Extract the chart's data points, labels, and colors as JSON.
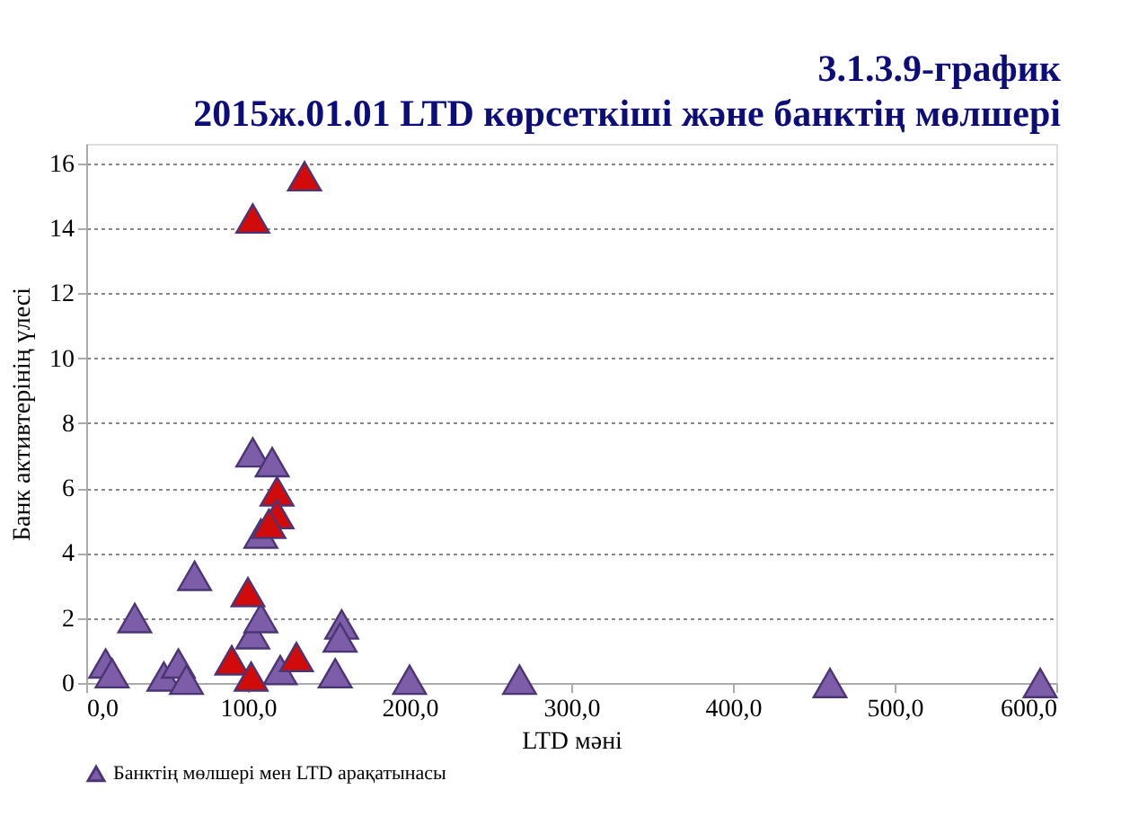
{
  "chart_data": {
    "type": "scatter",
    "title": "3.1.3.9-график",
    "subtitle": "2015ж.01.01 LTD көрсеткіші және банктің мөлшері",
    "xlabel": "LTD мәні",
    "ylabel": "Банк активтерінің үлесі",
    "xlim": [
      0,
      600
    ],
    "ylim": [
      0,
      16.6
    ],
    "xticks": [
      {
        "value": 0,
        "label": "0,0"
      },
      {
        "value": 100,
        "label": "100,0"
      },
      {
        "value": 200,
        "label": "200,0"
      },
      {
        "value": 300,
        "label": "300,0"
      },
      {
        "value": 400,
        "label": "400,0"
      },
      {
        "value": 500,
        "label": "500,0"
      },
      {
        "value": 600,
        "label": "600,0"
      }
    ],
    "yticks": [
      0,
      2,
      4,
      6,
      8,
      10,
      12,
      14,
      16
    ],
    "grid": "y",
    "legend": "bottom",
    "marker": "triangle",
    "series": [
      {
        "name": "Банктің мөлшері мен LTD арақатынасы",
        "color": "#7d5ca8",
        "x": [
          12,
          16,
          30,
          48,
          57,
          62,
          67,
          103,
          115,
          108,
          103,
          108,
          154,
          158,
          157,
          200,
          268,
          460,
          590,
          120,
          103,
          135,
          118,
          118,
          113,
          100,
          90,
          102,
          130
        ],
        "values": [
          0.6,
          0.3,
          2.0,
          0.2,
          0.6,
          0.1,
          3.3,
          7.1,
          6.8,
          4.6,
          1.5,
          2.0,
          0.3,
          1.8,
          1.4,
          0.1,
          0.1,
          0.0,
          0.0,
          0.4,
          14.3,
          15.6,
          5.9,
          5.2,
          4.9,
          2.8,
          0.7,
          0.2,
          0.8
        ],
        "colors": [
          "#7d5ca8",
          "#7d5ca8",
          "#7d5ca8",
          "#7d5ca8",
          "#7d5ca8",
          "#7d5ca8",
          "#7d5ca8",
          "#7d5ca8",
          "#7d5ca8",
          "#7d5ca8",
          "#7d5ca8",
          "#7d5ca8",
          "#7d5ca8",
          "#7d5ca8",
          "#7d5ca8",
          "#7d5ca8",
          "#7d5ca8",
          "#7d5ca8",
          "#7d5ca8",
          "#7d5ca8",
          "#d10a0a",
          "#d10a0a",
          "#d10a0a",
          "#d10a0a",
          "#d10a0a",
          "#d10a0a",
          "#d10a0a",
          "#d10a0a",
          "#d10a0a"
        ]
      }
    ]
  }
}
